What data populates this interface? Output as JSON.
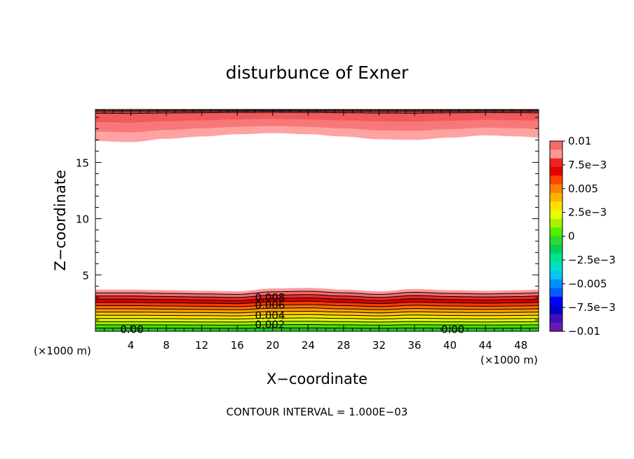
{
  "chart_data": {
    "type": "heatmap",
    "title": "disturbunce of Exner",
    "xlabel": "X−coordinate",
    "ylabel": "Z−coordinate",
    "x_unit": "(×1000 m)",
    "y_unit": "(×1000 m)",
    "xlim": [
      0,
      50
    ],
    "ylim": [
      0,
      19.7
    ],
    "x_ticks": [
      4,
      8,
      12,
      16,
      20,
      24,
      28,
      32,
      36,
      40,
      44,
      48
    ],
    "x_tick_labels": [
      "4",
      "8",
      "12",
      "16",
      "20",
      "24",
      "28",
      "32",
      "36",
      "40",
      "44",
      "48"
    ],
    "y_ticks": [
      5,
      10,
      15
    ],
    "y_tick_labels": [
      "5",
      "10",
      "15"
    ],
    "colorbar": {
      "range": [
        -0.01,
        0.01
      ],
      "labels": [
        "0.01",
        "7.5e−3",
        "0.005",
        "2.5e−3",
        "0",
        "−2.5e−3",
        "−0.005",
        "−7.5e−3",
        "−0.01"
      ],
      "colors": [
        "#f26b6b",
        "#ff9595",
        "#ee2222",
        "#e60000",
        "#ff4500",
        "#ff8000",
        "#ffb200",
        "#ffe000",
        "#e8ff00",
        "#a8f000",
        "#4ff000",
        "#2ed82e",
        "#00d05a",
        "#00e090",
        "#00e0c8",
        "#00c8f0",
        "#0090ff",
        "#0060ff",
        "#0000ff",
        "#0000c8",
        "#3c10c0",
        "#6a1ab0"
      ]
    },
    "surface_band": {
      "description_free": true,
      "max_height_at_x": [
        [
          0,
          3.7
        ],
        [
          4,
          3.7
        ],
        [
          8,
          3.65
        ],
        [
          12,
          3.6
        ],
        [
          16,
          3.55
        ],
        [
          20,
          3.8
        ],
        [
          24,
          3.85
        ],
        [
          28,
          3.7
        ],
        [
          32,
          3.55
        ],
        [
          36,
          3.75
        ],
        [
          40,
          3.65
        ],
        [
          44,
          3.6
        ],
        [
          48,
          3.65
        ],
        [
          50,
          3.7
        ]
      ]
    },
    "top_band": {
      "min_height_at_x": [
        [
          0,
          16.9
        ],
        [
          4,
          16.8
        ],
        [
          8,
          17.1
        ],
        [
          12,
          17.3
        ],
        [
          16,
          17.5
        ],
        [
          20,
          17.6
        ],
        [
          24,
          17.5
        ],
        [
          28,
          17.3
        ],
        [
          32,
          17.05
        ],
        [
          36,
          17.0
        ],
        [
          40,
          17.2
        ],
        [
          44,
          17.4
        ],
        [
          48,
          17.3
        ],
        [
          50,
          17.2
        ]
      ]
    },
    "contour_labels": [
      {
        "text": "0.008",
        "x": 18.0,
        "y": 3.0
      },
      {
        "text": "0.006",
        "x": 18.0,
        "y": 2.3
      },
      {
        "text": "0.004",
        "x": 18.0,
        "y": 1.4
      },
      {
        "text": "0.002",
        "x": 18.0,
        "y": 0.6
      },
      {
        "text": "0.00",
        "x": 2.8,
        "y": 0.15
      },
      {
        "text": "0.00",
        "x": 39.0,
        "y": 0.15
      }
    ],
    "grid": false,
    "legend": "colorbar-right"
  },
  "footer": {
    "contour_interval": "CONTOUR INTERVAL = 1.000E−03"
  }
}
